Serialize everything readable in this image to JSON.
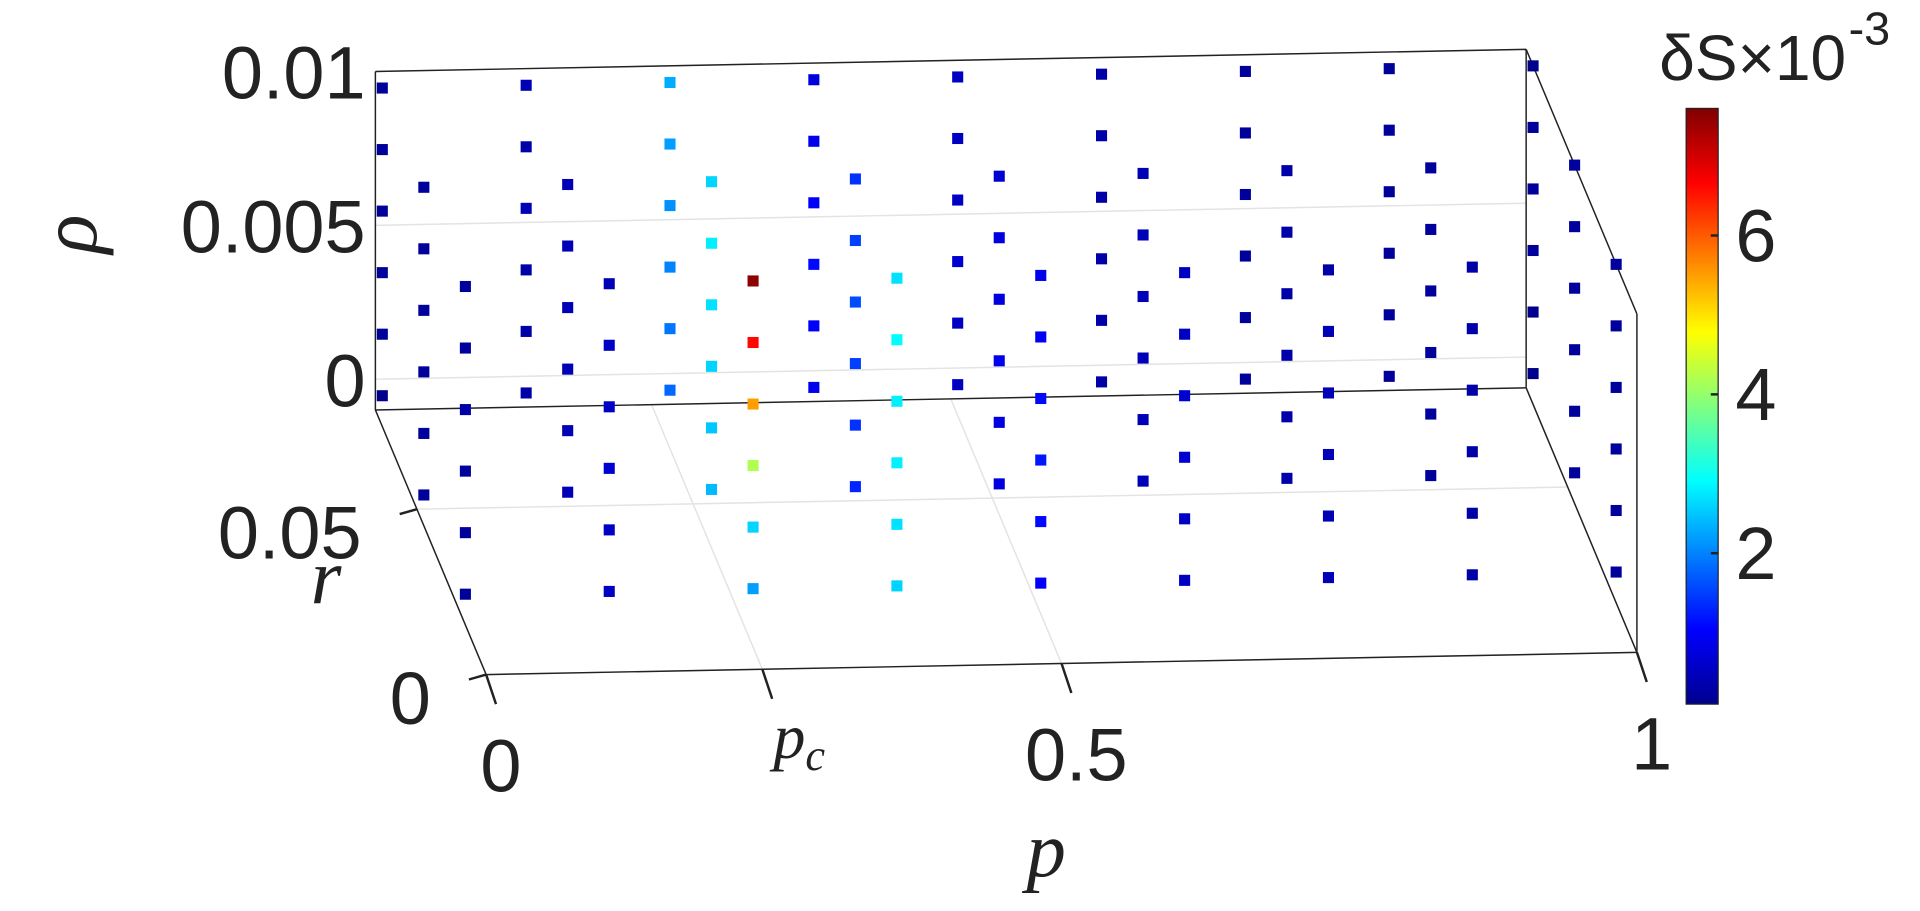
{
  "chart_data": {
    "type": "scatter3d",
    "xlabel": "p",
    "ylabel": "r",
    "zlabel": "ρ",
    "colorbar_label": "δS×10",
    "colorbar_exponent": "-3",
    "xlim": [
      0,
      1
    ],
    "ylim": [
      0,
      0.08
    ],
    "zlim": [
      -0.001,
      0.01
    ],
    "xticks": [
      0,
      {
        "value": 0.24,
        "label": "pc"
      },
      0.5,
      1
    ],
    "yticks": [
      0,
      0.05
    ],
    "zticks": [
      0,
      0.005,
      0.01
    ],
    "clim": [
      0.1,
      7.6
    ],
    "cticks": [
      2,
      4,
      6
    ],
    "grid": true,
    "colormap": "jet",
    "p": [
      0,
      0.125,
      0.25,
      0.375,
      0.5,
      0.625,
      0.75,
      0.875,
      1
    ],
    "r": [
      0.015,
      0.045,
      0.075
    ],
    "rho": [
      0,
      0.002,
      0.004,
      0.006,
      0.008,
      0.01
    ],
    "dS": [
      [
        [
          0.3,
          0.3,
          0.3,
          0.4,
          0.3,
          0.3
        ],
        [
          0.3,
          0.3,
          0.3,
          0.3,
          0.3,
          0.3
        ],
        [
          0.2,
          0.3,
          0.3,
          0.3,
          0.3,
          0.3
        ]
      ],
      [
        [
          0.6,
          0.6,
          0.7,
          0.6,
          0.6,
          0.5
        ],
        [
          0.5,
          0.5,
          0.5,
          0.5,
          0.5,
          0.5
        ],
        [
          0.4,
          0.4,
          0.4,
          0.5,
          0.4,
          0.5
        ]
      ],
      [
        [
          2.2,
          2.6,
          4.2,
          5.5,
          6.6,
          7.5
        ],
        [
          2.4,
          2.5,
          2.6,
          2.7,
          2.8,
          2.6
        ],
        [
          1.8,
          1.9,
          2.0,
          2.1,
          2.2,
          2.3
        ]
      ],
      [
        [
          2.6,
          2.7,
          2.8,
          2.8,
          2.9,
          2.7
        ],
        [
          1.3,
          1.4,
          1.5,
          1.6,
          1.5,
          1.4
        ],
        [
          0.9,
          1.0,
          1.1,
          1.0,
          0.9,
          0.8
        ]
      ],
      [
        [
          1.0,
          1.1,
          1.2,
          1.1,
          1.0,
          0.9
        ],
        [
          0.8,
          0.8,
          0.9,
          0.8,
          0.8,
          0.7
        ],
        [
          0.6,
          0.6,
          0.7,
          0.6,
          0.6,
          0.6
        ]
      ],
      [
        [
          0.6,
          0.6,
          0.7,
          0.7,
          0.6,
          0.6
        ],
        [
          0.5,
          0.5,
          0.5,
          0.5,
          0.5,
          0.5
        ],
        [
          0.4,
          0.4,
          0.4,
          0.4,
          0.4,
          0.4
        ]
      ],
      [
        [
          0.5,
          0.5,
          0.5,
          0.5,
          0.5,
          0.4
        ],
        [
          0.4,
          0.4,
          0.4,
          0.4,
          0.4,
          0.4
        ],
        [
          0.3,
          0.3,
          0.3,
          0.3,
          0.3,
          0.3
        ]
      ],
      [
        [
          0.4,
          0.4,
          0.4,
          0.4,
          0.4,
          0.4
        ],
        [
          0.3,
          0.3,
          0.3,
          0.3,
          0.3,
          0.3
        ],
        [
          0.3,
          0.3,
          0.3,
          0.3,
          0.3,
          0.3
        ]
      ],
      [
        [
          0.3,
          0.3,
          0.3,
          0.3,
          0.3,
          0.3
        ],
        [
          0.3,
          0.3,
          0.3,
          0.3,
          0.3,
          0.3
        ],
        [
          0.2,
          0.2,
          0.3,
          0.3,
          0.3,
          0.2
        ]
      ]
    ]
  }
}
